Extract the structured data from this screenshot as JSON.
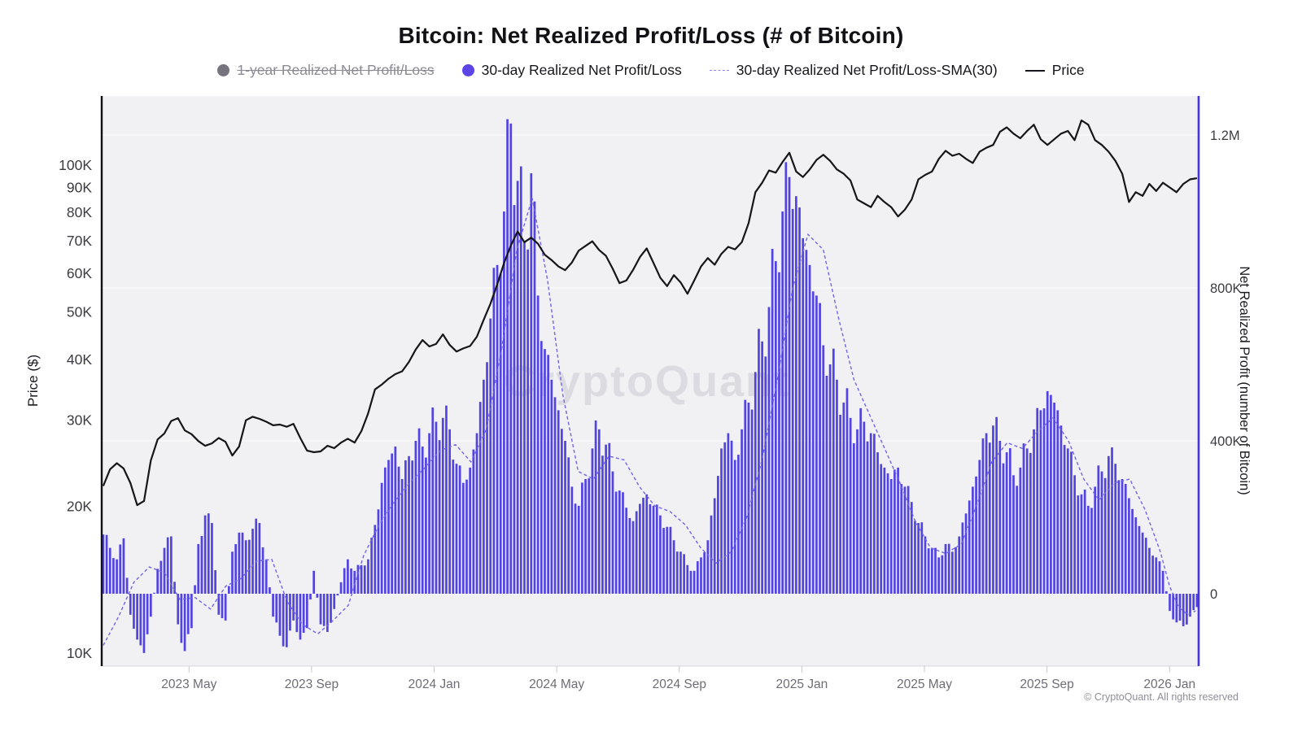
{
  "title": "Bitcoin: Net Realized Profit/Loss (# of Bitcoin)",
  "watermark": "CryptoQuant",
  "footer": "© CryptoQuant. All rights reserved",
  "colors": {
    "bars": "#5144e0",
    "sma": "#7165ec",
    "price": "#16151a",
    "right_axis": "#4636d9",
    "left_axis": "#101014",
    "plot_bg": "#f1f0f2",
    "gridline": "#fafafb",
    "muted_text": "#6e6d76",
    "tick_text": "#3c3b42",
    "watermark_color": "#dcdbe1",
    "disabled_legend": "#8c8b95"
  },
  "legend": {
    "items": [
      {
        "label": "1-year Realized Net Profit/Loss",
        "swatch": "circle",
        "color": "#77747f",
        "disabled": true
      },
      {
        "label": "30-day Realized Net Profit/Loss",
        "swatch": "circle",
        "color": "#5b45e6",
        "disabled": false
      },
      {
        "label": "30-day Realized Net Profit/Loss-SMA(30)",
        "swatch": "dashed-line",
        "color": "#8b85ef",
        "disabled": false
      },
      {
        "label": "Price",
        "swatch": "line",
        "color": "#17161c",
        "disabled": false
      }
    ]
  },
  "axes": {
    "left": {
      "title": "Price ($)",
      "scale": "log",
      "unit": "USD",
      "ticks": [
        {
          "label": "10K",
          "v": 10
        },
        {
          "label": "20K",
          "v": 20
        },
        {
          "label": "30K",
          "v": 30
        },
        {
          "label": "40K",
          "v": 40
        },
        {
          "label": "50K",
          "v": 50
        },
        {
          "label": "60K",
          "v": 60
        },
        {
          "label": "70K",
          "v": 70
        },
        {
          "label": "80K",
          "v": 80
        },
        {
          "label": "90K",
          "v": 90
        },
        {
          "label": "100K",
          "v": 100
        }
      ]
    },
    "right": {
      "title": "Net Realized Profit (number of Bitcoin)",
      "scale": "linear",
      "unit": "BTC",
      "ticks": [
        {
          "label": "0",
          "v": 0
        },
        {
          "label": "400K",
          "v": 400
        },
        {
          "label": "800K",
          "v": 800
        },
        {
          "label": "1.2M",
          "v": 1200
        }
      ]
    },
    "x": {
      "unit": "months since 2023-02",
      "ticks": [
        {
          "label": "2023 May",
          "t": 3
        },
        {
          "label": "2023 Sep",
          "t": 7
        },
        {
          "label": "2024 Jan",
          "t": 11
        },
        {
          "label": "2024 May",
          "t": 15
        },
        {
          "label": "2024 Sep",
          "t": 19
        },
        {
          "label": "2025 Jan",
          "t": 23
        },
        {
          "label": "2025 May",
          "t": 27
        },
        {
          "label": "2025 Sep",
          "t": 31
        },
        {
          "label": "2026 Jan",
          "t": 35
        }
      ],
      "t_min": 0.15,
      "t_max": 35.95
    }
  },
  "chart_data": {
    "type": "composite",
    "x_unit": "months since 2023-02 (Feb 2023 = 0)",
    "hidden_series": [
      "1-year Realized Net Profit/Loss"
    ],
    "series": [
      {
        "name": "30-day Realized Net Profit/Loss",
        "type": "bar",
        "axis": "right",
        "unit": "thousand BTC",
        "t0": 0.2,
        "dt": 0.2217,
        "values": [
          155,
          120,
          90,
          145,
          -55,
          -120,
          -155,
          -60,
          65,
          120,
          150,
          -80,
          -150,
          -90,
          130,
          205,
          185,
          -55,
          -70,
          110,
          160,
          140,
          170,
          185,
          90,
          -60,
          -110,
          -140,
          -70,
          -120,
          -90,
          60,
          -80,
          -100,
          -40,
          30,
          90,
          60,
          75,
          90,
          180,
          290,
          350,
          385,
          300,
          360,
          400,
          385,
          420,
          450,
          460,
          430,
          340,
          290,
          330,
          420,
          560,
          720,
          860,
          1000,
          1230,
          1080,
          920,
          1100,
          780,
          640,
          560,
          480,
          400,
          280,
          230,
          300,
          380,
          430,
          390,
          320,
          270,
          225,
          190,
          235,
          260,
          230,
          205,
          175,
          140,
          110,
          75,
          60,
          95,
          140,
          250,
          380,
          420,
          350,
          430,
          500,
          580,
          660,
          750,
          870,
          1000,
          1090,
          1040,
          930,
          860,
          780,
          650,
          600,
          560,
          500,
          460,
          430,
          450,
          420,
          370,
          330,
          300,
          330,
          280,
          240,
          185,
          150,
          120,
          95,
          130,
          110,
          150,
          210,
          280,
          350,
          420,
          440,
          400,
          370,
          310,
          330,
          380,
          430,
          480,
          530,
          500,
          440,
          380,
          310,
          260,
          230,
          280,
          320,
          360,
          340,
          300,
          250,
          200,
          160,
          120,
          95,
          60,
          -45,
          -75,
          -85,
          -60,
          -35
        ]
      },
      {
        "name": "30-day Realized Net Profit/Loss-SMA(30)",
        "type": "line",
        "style": "dashed",
        "axis": "right",
        "unit": "thousand BTC",
        "points": [
          [
            0.2,
            -135
          ],
          [
            0.7,
            -60
          ],
          [
            1.2,
            30
          ],
          [
            1.7,
            70
          ],
          [
            2.2,
            55
          ],
          [
            2.7,
            -15
          ],
          [
            3.2,
            -10
          ],
          [
            3.7,
            -40
          ],
          [
            4.2,
            20
          ],
          [
            4.7,
            40
          ],
          [
            5.2,
            85
          ],
          [
            5.7,
            90
          ],
          [
            6.2,
            -20
          ],
          [
            6.7,
            -80
          ],
          [
            7.2,
            -105
          ],
          [
            7.7,
            -70
          ],
          [
            8.2,
            -30
          ],
          [
            8.7,
            100
          ],
          [
            9.2,
            180
          ],
          [
            9.7,
            240
          ],
          [
            10.2,
            290
          ],
          [
            10.7,
            330
          ],
          [
            11.2,
            375
          ],
          [
            11.7,
            390
          ],
          [
            12.2,
            345
          ],
          [
            12.7,
            430
          ],
          [
            13.2,
            640
          ],
          [
            13.7,
            900
          ],
          [
            14.2,
            1035
          ],
          [
            14.7,
            820
          ],
          [
            15.2,
            520
          ],
          [
            15.7,
            320
          ],
          [
            16.2,
            300
          ],
          [
            16.7,
            360
          ],
          [
            17.2,
            350
          ],
          [
            17.7,
            280
          ],
          [
            18.2,
            230
          ],
          [
            18.7,
            215
          ],
          [
            19.2,
            180
          ],
          [
            19.7,
            120
          ],
          [
            20.2,
            80
          ],
          [
            20.7,
            110
          ],
          [
            21.2,
            200
          ],
          [
            21.7,
            350
          ],
          [
            22.2,
            560
          ],
          [
            22.7,
            800
          ],
          [
            23.2,
            940
          ],
          [
            23.7,
            900
          ],
          [
            24.2,
            720
          ],
          [
            24.7,
            560
          ],
          [
            25.2,
            470
          ],
          [
            25.7,
            380
          ],
          [
            26.2,
            290
          ],
          [
            26.7,
            190
          ],
          [
            27.2,
            120
          ],
          [
            27.7,
            105
          ],
          [
            28.2,
            130
          ],
          [
            28.7,
            230
          ],
          [
            29.2,
            345
          ],
          [
            29.7,
            395
          ],
          [
            30.2,
            380
          ],
          [
            30.7,
            425
          ],
          [
            31.2,
            460
          ],
          [
            31.7,
            400
          ],
          [
            32.2,
            300
          ],
          [
            32.7,
            245
          ],
          [
            33.2,
            290
          ],
          [
            33.7,
            300
          ],
          [
            34.2,
            220
          ],
          [
            34.7,
            110
          ],
          [
            35.0,
            20
          ],
          [
            35.3,
            -35
          ],
          [
            35.6,
            -55
          ],
          [
            35.85,
            -45
          ]
        ]
      },
      {
        "name": "Price",
        "type": "line",
        "axis": "left",
        "unit": "thousand USD",
        "t0": 0.2,
        "dt": 0.2217,
        "values": [
          22.0,
          23.8,
          24.5,
          23.9,
          22.3,
          20.1,
          20.5,
          24.8,
          27.4,
          28.2,
          29.9,
          30.3,
          28.6,
          28.1,
          27.2,
          26.6,
          26.9,
          27.6,
          27.1,
          25.4,
          26.5,
          30.0,
          30.5,
          30.2,
          29.8,
          29.3,
          29.4,
          29.1,
          29.5,
          27.6,
          26.0,
          25.8,
          25.9,
          26.6,
          26.3,
          27.0,
          27.5,
          27.0,
          28.5,
          31.0,
          34.7,
          35.5,
          36.5,
          37.3,
          37.8,
          39.5,
          41.9,
          43.8,
          42.5,
          43.0,
          45.0,
          42.8,
          41.5,
          42.1,
          42.6,
          44.5,
          48.2,
          52.0,
          57.0,
          63.0,
          68.5,
          73.1,
          69.5,
          71.0,
          69.0,
          65.5,
          63.9,
          62.0,
          60.9,
          63.2,
          66.8,
          68.3,
          69.8,
          67.0,
          65.2,
          61.3,
          57.3,
          58.0,
          61.0,
          64.8,
          67.5,
          63.0,
          58.8,
          56.5,
          59.5,
          57.5,
          54.5,
          58.0,
          62.0,
          64.5,
          62.5,
          65.8,
          68.0,
          67.2,
          69.5,
          76.0,
          88.0,
          92.0,
          97.5,
          96.5,
          101.5,
          106.0,
          97.0,
          94.5,
          98.0,
          102.5,
          105.0,
          102.0,
          98.0,
          96.0,
          93.0,
          85.0,
          83.5,
          82.0,
          86.5,
          84.0,
          82.0,
          78.5,
          81.0,
          85.0,
          93.5,
          95.5,
          97.0,
          103.0,
          107.0,
          104.5,
          105.5,
          103.0,
          101.0,
          106.5,
          108.5,
          110.0,
          117.0,
          119.5,
          116.0,
          113.5,
          117.5,
          121.0,
          113.0,
          110.0,
          113.0,
          116.0,
          117.5,
          112.5,
          123.5,
          121.0,
          112.5,
          110.0,
          106.5,
          102.0,
          96.0,
          84.0,
          88.0,
          86.5,
          91.5,
          88.5,
          92.0,
          90.0,
          88.0,
          91.5,
          93.5,
          94.0
        ]
      }
    ]
  }
}
